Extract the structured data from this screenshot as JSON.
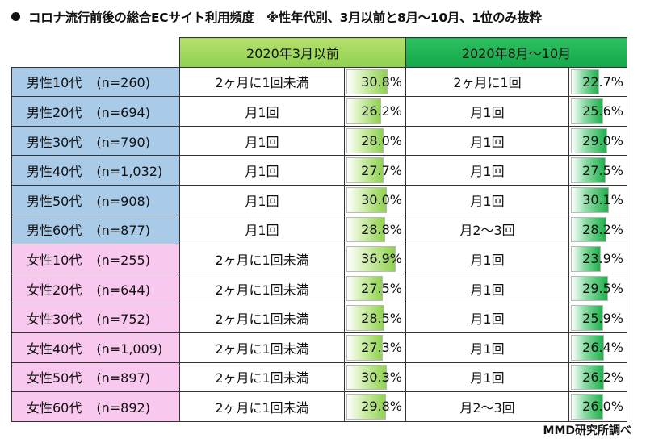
{
  "title": "コロナ流行前後の総合ECサイト利用頻度　※性年代別、3月以前と8月～10月、1位のみ抜粋",
  "source": "MMD研究所調べ",
  "colors": {
    "male_row": "#a9cbe8",
    "female_row": "#f9c8ee",
    "header_before": "#8fd14f",
    "header_after": "#13a84a"
  },
  "chart_data": {
    "type": "table",
    "title": "コロナ流行前後の総合ECサイト利用頻度　※性年代別、3月以前と8月～10月、1位のみ抜粋",
    "columns": [
      "2020年3月以前",
      "2020年8月～10月"
    ],
    "value_unit": "%",
    "bar_max": 40,
    "rows": [
      {
        "segment": "男性10代",
        "n": "(n=260)",
        "gender": "male",
        "before": {
          "freq": "2ヶ月に1回未満",
          "value": 30.8
        },
        "after": {
          "freq": "2ヶ月に1回",
          "value": 22.7
        }
      },
      {
        "segment": "男性20代",
        "n": "(n=694)",
        "gender": "male",
        "before": {
          "freq": "月1回",
          "value": 26.2
        },
        "after": {
          "freq": "月1回",
          "value": 25.6
        }
      },
      {
        "segment": "男性30代",
        "n": "(n=790)",
        "gender": "male",
        "before": {
          "freq": "月1回",
          "value": 28.0
        },
        "after": {
          "freq": "月1回",
          "value": 29.0
        }
      },
      {
        "segment": "男性40代",
        "n": "(n=1,032)",
        "gender": "male",
        "before": {
          "freq": "月1回",
          "value": 27.7
        },
        "after": {
          "freq": "月1回",
          "value": 27.5
        }
      },
      {
        "segment": "男性50代",
        "n": "(n=908)",
        "gender": "male",
        "before": {
          "freq": "月1回",
          "value": 30.0
        },
        "after": {
          "freq": "月1回",
          "value": 30.1
        }
      },
      {
        "segment": "男性60代",
        "n": "(n=877)",
        "gender": "male",
        "before": {
          "freq": "月1回",
          "value": 28.8
        },
        "after": {
          "freq": "月2～3回",
          "value": 28.2
        }
      },
      {
        "segment": "女性10代",
        "n": "(n=255)",
        "gender": "female",
        "before": {
          "freq": "2ヶ月に1回未満",
          "value": 36.9
        },
        "after": {
          "freq": "月1回",
          "value": 23.9
        }
      },
      {
        "segment": "女性20代",
        "n": "(n=644)",
        "gender": "female",
        "before": {
          "freq": "2ヶ月に1回未満",
          "value": 27.5
        },
        "after": {
          "freq": "月1回",
          "value": 29.5
        }
      },
      {
        "segment": "女性30代",
        "n": "(n=752)",
        "gender": "female",
        "before": {
          "freq": "2ヶ月に1回未満",
          "value": 28.5
        },
        "after": {
          "freq": "月1回",
          "value": 25.9
        }
      },
      {
        "segment": "女性40代",
        "n": "(n=1,009)",
        "gender": "female",
        "before": {
          "freq": "2ヶ月に1回未満",
          "value": 27.3
        },
        "after": {
          "freq": "月1回",
          "value": 26.4
        }
      },
      {
        "segment": "女性50代",
        "n": "(n=897)",
        "gender": "female",
        "before": {
          "freq": "2ヶ月に1回未満",
          "value": 30.3
        },
        "after": {
          "freq": "月1回",
          "value": 26.2
        }
      },
      {
        "segment": "女性60代",
        "n": "(n=892)",
        "gender": "female",
        "before": {
          "freq": "2ヶ月に1回未満",
          "value": 29.8
        },
        "after": {
          "freq": "月2～3回",
          "value": 26.0
        }
      }
    ]
  }
}
